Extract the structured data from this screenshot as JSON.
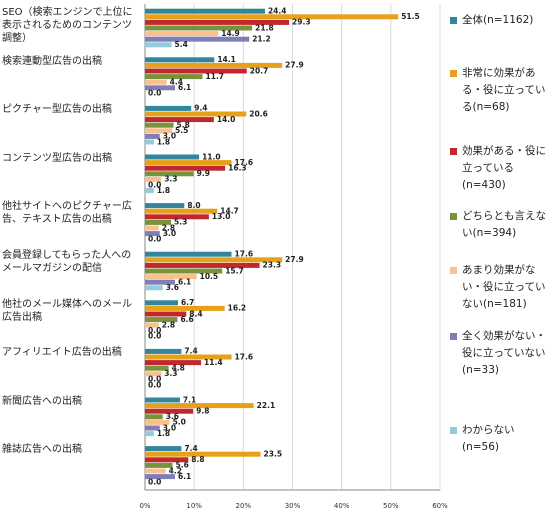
{
  "chart_data": {
    "type": "barh",
    "categories": [
      "SEO（検索エンジンで上位に表示されるためのコンテンツ調整）",
      "検索連動型広告の出稿",
      "ピクチャー型広告の出稿",
      "コンテンツ型広告の出稿",
      "他社サイトへのピクチャー広告、テキスト広告の出稿",
      "会員登録してもらった人へのメールマガジンの配信",
      "他社のメール媒体へのメール広告出稿",
      "アフィリエイト広告の出稿",
      "新聞広告への出稿",
      "雑誌広告への出稿"
    ],
    "series": [
      {
        "name": "全体(n=1162)",
        "color": "#31859c",
        "values": [
          24.4,
          14.1,
          9.4,
          11.0,
          8.0,
          17.6,
          6.7,
          7.4,
          7.1,
          7.4
        ],
        "value_labels": [
          "24.4",
          "14.1",
          "9.4",
          "11.0",
          "8.0",
          "17.6",
          "6.7",
          "7.4",
          "7.1",
          "7.4"
        ]
      },
      {
        "name": "非常に効果がある・役に立っている(n=68)",
        "color": "#e6a118",
        "values": [
          51.5,
          27.9,
          20.6,
          17.6,
          14.7,
          27.9,
          16.2,
          17.6,
          22.1,
          23.5
        ],
        "value_labels": [
          "51.5",
          "27.9",
          "20.6",
          "17.6",
          "14.7",
          "27.9",
          "16.2",
          "17.6",
          "22.1",
          "23.5"
        ]
      },
      {
        "name": "効果がある・役に立っている(n=430)",
        "color": "#c0282d",
        "values": [
          29.3,
          20.7,
          14.0,
          16.3,
          13.0,
          23.3,
          8.4,
          11.4,
          9.8,
          8.8
        ],
        "value_labels": [
          "29.3",
          "20.7",
          "14.0",
          "16.3",
          "13.0",
          "23.3",
          "8.4",
          "11.4",
          "9.8",
          "8.8"
        ]
      },
      {
        "name": "どちらとも言えない(n=394)",
        "color": "#77933c",
        "values": [
          21.8,
          11.7,
          5.8,
          9.9,
          5.3,
          15.7,
          6.6,
          4.8,
          3.6,
          5.6
        ],
        "value_labels": [
          "21.8",
          "11.7",
          "5.8",
          "9.9",
          "5.3",
          "15.7",
          "6.6",
          "4.8",
          "3.6",
          "5.6"
        ]
      },
      {
        "name": "あまり効果がない・役に立っていない(n=181)",
        "color": "#fac090",
        "values": [
          14.9,
          4.4,
          5.5,
          3.3,
          2.8,
          10.5,
          2.8,
          3.3,
          5.0,
          4.2
        ],
        "value_labels": [
          "14.9",
          "4.4",
          "5.5",
          "3.3",
          "2.8",
          "10.5",
          "2.8",
          "3.3",
          "5.0",
          "4.2"
        ]
      },
      {
        "name": "全く効果がない・役に立っていない(n=33)",
        "color": "#7f7fb8",
        "values": [
          21.2,
          6.1,
          3.0,
          0.0,
          3.0,
          6.1,
          0.0,
          0.0,
          3.0,
          6.1
        ],
        "value_labels": [
          "21.2",
          "6.1",
          "3.0",
          "0.0",
          "3.0",
          "6.1",
          "0.0",
          "0.0",
          "3.0",
          "6.1"
        ]
      },
      {
        "name": "わからない(n=56)",
        "color": "#93cddd",
        "values": [
          5.4,
          0.0,
          1.8,
          1.8,
          0.0,
          3.6,
          0.0,
          0.0,
          1.8,
          0.0
        ],
        "value_labels": [
          "5.4",
          "0.0",
          "1.8",
          "1.8",
          "0.0",
          "3.6",
          "0.0",
          "0.0",
          "1.8",
          "0.0"
        ]
      }
    ],
    "xlim": [
      0,
      60
    ],
    "xticks": [
      {
        "value": 0,
        "label": "0%"
      },
      {
        "value": 10,
        "label": "10%"
      },
      {
        "value": 20,
        "label": "20%"
      },
      {
        "value": 30,
        "label": "30%"
      },
      {
        "value": 40,
        "label": "40%"
      },
      {
        "value": 50,
        "label": "50%"
      },
      {
        "value": 60,
        "label": "60%"
      }
    ],
    "grid": true,
    "legend": "right"
  }
}
